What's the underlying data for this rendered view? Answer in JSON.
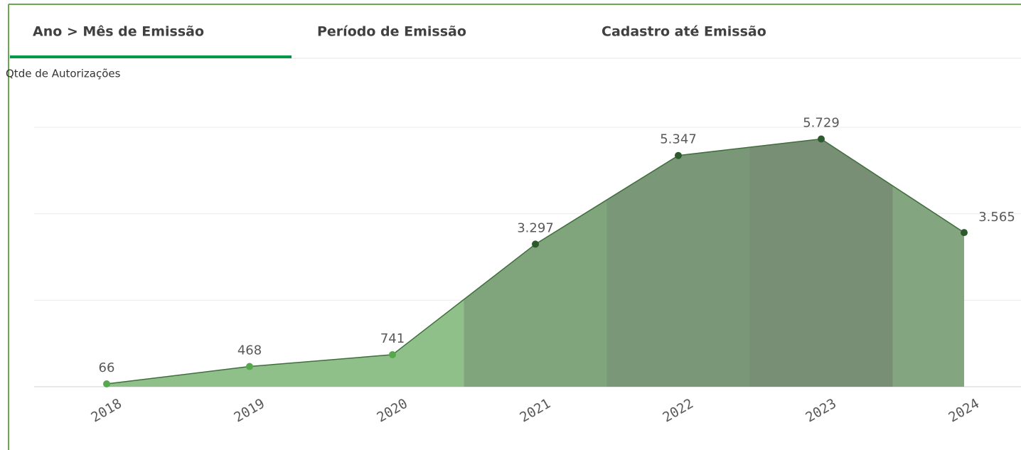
{
  "tabs": [
    "Ano > Mês de Emissão",
    "Período de Emissão",
    "Cadastro até Emissão"
  ],
  "chart_data": {
    "type": "area",
    "y_label": "Qtde de Autorizações",
    "categories": [
      "2018",
      "2019",
      "2020",
      "2021",
      "2022",
      "2023",
      "2024"
    ],
    "values": [
      66,
      468,
      741,
      3297,
      5347,
      5729,
      3565
    ],
    "value_labels": [
      "66",
      "468",
      "741",
      "3.297",
      "5.347",
      "5.729",
      "3.565"
    ],
    "colors": [
      "#8fc08a",
      "#8fc08a",
      "#8fc08a",
      "#80a47c",
      "#7a9878",
      "#788e75",
      "#83a57f"
    ],
    "ylim": [
      0,
      6000
    ],
    "yticks": [
      0,
      2000,
      4000,
      6000
    ],
    "grid": true
  }
}
